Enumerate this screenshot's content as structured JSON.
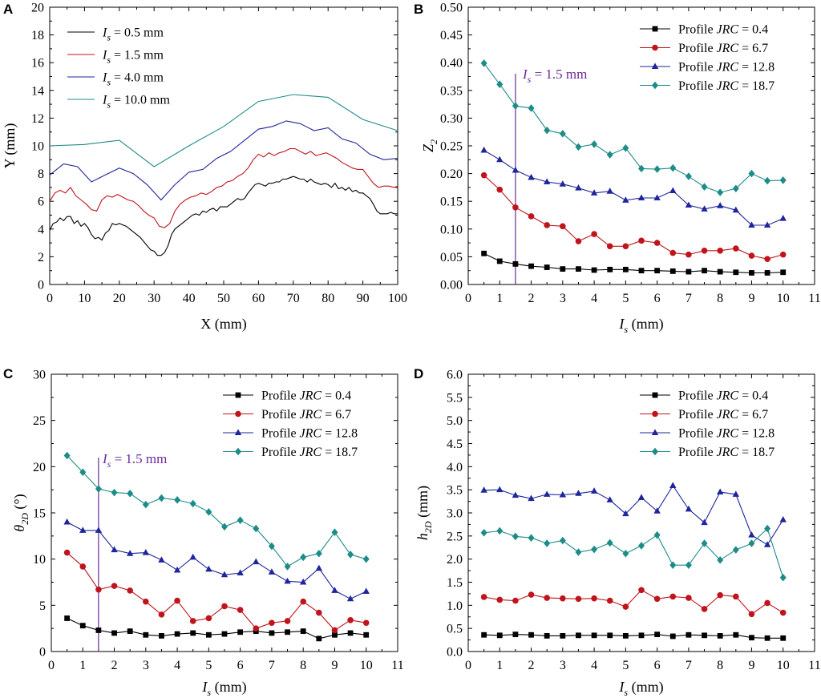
{
  "colors": {
    "black": "#000000",
    "red": "#c0141c",
    "blue": "#1f259b",
    "teal": "#1d8c88",
    "purple": "#6a2a9a"
  },
  "chart_data": [
    {
      "panel": "A",
      "type": "line",
      "xlabel": "X (mm)",
      "ylabel": "Y (mm)",
      "xlim": [
        0,
        100
      ],
      "ylim": [
        0,
        20
      ],
      "xticks": [
        "0",
        "10",
        "20",
        "30",
        "40",
        "50",
        "60",
        "70",
        "80",
        "90",
        "100"
      ],
      "yticks": [
        "0",
        "2",
        "4",
        "6",
        "8",
        "10",
        "12",
        "14",
        "16",
        "18",
        "20"
      ],
      "legend": [
        {
          "prefix": "I",
          "sub": "s",
          "rest": " = 0.5 mm"
        },
        {
          "prefix": "I",
          "sub": "s",
          "rest": " = 1.5 mm"
        },
        {
          "prefix": "I",
          "sub": "s",
          "rest": " = 4.0 mm"
        },
        {
          "prefix": "I",
          "sub": "s",
          "rest": " = 10.0 mm"
        }
      ],
      "series": [
        {
          "name": "Is = 0.5 mm",
          "color": "black",
          "x": [
            0,
            1,
            2,
            3,
            4,
            5,
            6,
            7,
            8,
            9,
            10,
            11,
            12,
            13,
            14,
            15,
            16,
            17,
            18,
            19,
            20,
            21,
            22,
            23,
            24,
            25,
            26,
            27,
            28,
            29,
            30,
            31,
            32,
            33,
            34,
            35,
            36,
            37,
            38,
            39,
            40,
            41,
            42,
            43,
            44,
            45,
            46,
            47,
            48,
            49,
            50,
            51,
            52,
            53,
            54,
            55,
            56,
            57,
            58,
            59,
            60,
            61,
            62,
            63,
            64,
            65,
            66,
            67,
            68,
            69,
            70,
            71,
            72,
            73,
            74,
            75,
            76,
            77,
            78,
            79,
            80,
            81,
            82,
            83,
            84,
            85,
            86,
            87,
            88,
            89,
            90,
            91,
            92,
            93,
            94,
            95,
            96,
            97,
            98,
            99,
            100
          ],
          "y": [
            3.9,
            4.4,
            4.5,
            4.8,
            4.6,
            4.9,
            4.9,
            4.4,
            4.6,
            4.2,
            4.4,
            4.1,
            3.6,
            3.3,
            3.4,
            3.2,
            3.7,
            3.9,
            4.4,
            4.3,
            4.4,
            4.3,
            4.2,
            4.0,
            3.8,
            3.6,
            3.4,
            3.1,
            2.8,
            2.5,
            2.4,
            2.1,
            2.1,
            2.3,
            2.8,
            3.6,
            4.0,
            4.2,
            4.4,
            4.6,
            4.8,
            5.0,
            5.1,
            5.0,
            5.3,
            5.2,
            5.4,
            5.5,
            5.3,
            5.6,
            5.6,
            5.6,
            5.8,
            6.0,
            6.2,
            6.1,
            6.2,
            6.6,
            6.9,
            7.2,
            7.3,
            7.2,
            7.1,
            7.3,
            7.3,
            7.4,
            7.4,
            7.6,
            7.6,
            7.7,
            7.8,
            7.7,
            7.6,
            7.6,
            7.4,
            7.6,
            7.4,
            7.3,
            7.2,
            7.3,
            7.2,
            7.0,
            7.3,
            6.9,
            7.0,
            6.8,
            7.0,
            6.7,
            6.8,
            6.6,
            6.6,
            6.4,
            6.2,
            5.8,
            5.3,
            5.1,
            5.1,
            5.1,
            5.2,
            5.1,
            5.1
          ]
        },
        {
          "name": "Is = 1.5 mm",
          "color": "red",
          "x": [
            0,
            1.5,
            3,
            4.5,
            6,
            7.5,
            9,
            10.5,
            12,
            13.5,
            15,
            16.5,
            18,
            19.5,
            21,
            22.5,
            24,
            25.5,
            27,
            28.5,
            30,
            31.5,
            33,
            34.5,
            36,
            37.5,
            39,
            40.5,
            42,
            43.5,
            45,
            46.5,
            48,
            49.5,
            51,
            52.5,
            54,
            55.5,
            57,
            58.5,
            60,
            61.5,
            63,
            64.5,
            66,
            67.5,
            69,
            70.5,
            72,
            73.5,
            75,
            76.5,
            78,
            79.5,
            81,
            82.5,
            84,
            85.5,
            87,
            88.5,
            90,
            91.5,
            93,
            94.5,
            96,
            97.5,
            99,
            100
          ],
          "y": [
            6.0,
            6.6,
            6.8,
            6.6,
            7.0,
            6.4,
            6.1,
            5.8,
            5.4,
            5.3,
            6.1,
            6.4,
            6.3,
            6.5,
            6.3,
            6.1,
            6.0,
            5.7,
            5.3,
            5.0,
            4.8,
            4.2,
            4.1,
            4.4,
            5.3,
            5.8,
            6.1,
            6.3,
            6.4,
            6.6,
            6.5,
            6.7,
            7.0,
            7.1,
            7.4,
            7.5,
            7.8,
            8.0,
            8.4,
            9.0,
            9.4,
            9.2,
            9.5,
            9.3,
            9.5,
            9.6,
            9.8,
            9.8,
            9.6,
            9.4,
            9.6,
            9.3,
            9.4,
            9.5,
            9.3,
            9.1,
            8.8,
            8.6,
            8.4,
            8.3,
            8.3,
            7.8,
            7.3,
            7.0,
            7.1,
            7.1,
            7.0,
            7.1
          ]
        },
        {
          "name": "Is = 4.0 mm",
          "color": "blue",
          "x": [
            0,
            4,
            8,
            12,
            16,
            20,
            24,
            28,
            32,
            36,
            40,
            44,
            48,
            52,
            56,
            60,
            64,
            68,
            72,
            76,
            80,
            84,
            88,
            92,
            96,
            100
          ],
          "y": [
            7.9,
            8.7,
            8.5,
            7.4,
            7.9,
            8.4,
            8.0,
            7.2,
            6.1,
            7.2,
            8.1,
            8.3,
            9.1,
            9.6,
            10.4,
            11.2,
            11.4,
            11.8,
            11.6,
            11.1,
            11.3,
            10.5,
            10.2,
            9.4,
            9.0,
            9.1
          ]
        },
        {
          "name": "Is = 10.0 mm",
          "color": "teal",
          "x": [
            0,
            10,
            20,
            30,
            40,
            50,
            60,
            70,
            80,
            90,
            100
          ],
          "y": [
            10.0,
            10.1,
            10.4,
            8.5,
            10.0,
            11.4,
            13.2,
            13.7,
            13.5,
            11.9,
            11.1
          ]
        }
      ]
    },
    {
      "panel": "B",
      "type": "line",
      "xlabel": "I",
      "xlabel_sub": "s",
      "xlabel_rest": " (mm)",
      "ylabel": "Z",
      "ylabel_sub": "2",
      "xlim": [
        0,
        11
      ],
      "ylim": [
        0,
        0.5
      ],
      "xticks": [
        "0",
        "1",
        "2",
        "3",
        "4",
        "5",
        "6",
        "7",
        "8",
        "9",
        "10",
        "11"
      ],
      "yticks": [
        "0.00",
        "0.05",
        "0.10",
        "0.15",
        "0.20",
        "0.25",
        "0.30",
        "0.35",
        "0.40",
        "0.45",
        "0.50"
      ],
      "annotation": {
        "x": 1.5,
        "prefix": "I",
        "sub": "s",
        "rest": " = 1.5 mm"
      },
      "legend": [
        {
          "pre": "Profile ",
          "it": "JRC",
          "post": " = 0.4"
        },
        {
          "pre": "Profile ",
          "it": "JRC",
          "post": " = 6.7"
        },
        {
          "pre": "Profile ",
          "it": "JRC",
          "post": " = 12.8"
        },
        {
          "pre": "Profile ",
          "it": "JRC",
          "post": " = 18.7"
        }
      ],
      "x": [
        0.5,
        1,
        1.5,
        2,
        2.5,
        3,
        3.5,
        4,
        4.5,
        5,
        5.5,
        6,
        6.5,
        7,
        7.5,
        8,
        8.5,
        9,
        9.5,
        10
      ],
      "series": [
        {
          "name": "Profile JRC = 0.4",
          "color": "black",
          "marker": "square",
          "values": [
            0.056,
            0.042,
            0.037,
            0.033,
            0.031,
            0.028,
            0.028,
            0.026,
            0.027,
            0.027,
            0.025,
            0.025,
            0.024,
            0.023,
            0.025,
            0.023,
            0.022,
            0.021,
            0.021,
            0.022
          ]
        },
        {
          "name": "Profile JRC = 6.7",
          "color": "red",
          "marker": "circle",
          "values": [
            0.197,
            0.171,
            0.139,
            0.123,
            0.107,
            0.105,
            0.078,
            0.091,
            0.069,
            0.069,
            0.079,
            0.075,
            0.057,
            0.054,
            0.061,
            0.061,
            0.065,
            0.052,
            0.046,
            0.054
          ]
        },
        {
          "name": "Profile JRC = 12.8",
          "color": "blue",
          "marker": "triangle",
          "values": [
            0.242,
            0.225,
            0.206,
            0.193,
            0.185,
            0.181,
            0.174,
            0.165,
            0.168,
            0.152,
            0.156,
            0.156,
            0.169,
            0.143,
            0.136,
            0.142,
            0.134,
            0.107,
            0.107,
            0.119
          ]
        },
        {
          "name": "Profile JRC = 18.7",
          "color": "teal",
          "marker": "diamond",
          "values": [
            0.399,
            0.361,
            0.322,
            0.318,
            0.278,
            0.272,
            0.248,
            0.253,
            0.234,
            0.246,
            0.209,
            0.208,
            0.21,
            0.195,
            0.176,
            0.166,
            0.173,
            0.2,
            0.187,
            0.188
          ]
        }
      ]
    },
    {
      "panel": "C",
      "type": "line",
      "xlabel": "I",
      "xlabel_sub": "s",
      "xlabel_rest": " (mm)",
      "ylabel": "θ",
      "ylabel_sub": "2D",
      "ylabel_rest": " (°)",
      "xlim": [
        0,
        11
      ],
      "ylim": [
        0,
        30
      ],
      "xticks": [
        "0",
        "1",
        "2",
        "3",
        "4",
        "5",
        "6",
        "7",
        "8",
        "9",
        "10",
        "11"
      ],
      "yticks": [
        "0",
        "5",
        "10",
        "15",
        "20",
        "25",
        "30"
      ],
      "annotation": {
        "x": 1.5,
        "prefix": "I",
        "sub": "s",
        "rest": " = 1.5 mm"
      },
      "legend": [
        {
          "pre": "Profile ",
          "it": "JRC",
          "post": " = 0.4"
        },
        {
          "pre": "Profile ",
          "it": "JRC",
          "post": " = 6.7"
        },
        {
          "pre": "Profile ",
          "it": "JRC",
          "post": " = 12.8"
        },
        {
          "pre": "Profile ",
          "it": "JRC",
          "post": " = 18.7"
        }
      ],
      "x": [
        0.5,
        1,
        1.5,
        2,
        2.5,
        3,
        3.5,
        4,
        4.5,
        5,
        5.5,
        6,
        6.5,
        7,
        7.5,
        8,
        8.5,
        9,
        9.5,
        10
      ],
      "series": [
        {
          "name": "Profile JRC = 0.4",
          "color": "black",
          "marker": "square",
          "values": [
            3.6,
            2.8,
            2.3,
            2.0,
            2.2,
            1.8,
            1.7,
            1.9,
            2.0,
            1.8,
            1.9,
            2.1,
            2.2,
            2.0,
            2.1,
            2.2,
            1.4,
            1.8,
            2.0,
            1.8
          ]
        },
        {
          "name": "Profile JRC = 6.7",
          "color": "red",
          "marker": "circle",
          "values": [
            10.7,
            9.2,
            6.7,
            7.1,
            6.6,
            5.4,
            4.0,
            5.5,
            3.3,
            3.6,
            4.9,
            4.5,
            2.5,
            3.1,
            3.3,
            5.4,
            4.2,
            2.3,
            3.4,
            3.1
          ]
        },
        {
          "name": "Profile JRC = 12.8",
          "color": "blue",
          "marker": "triangle",
          "values": [
            14.0,
            13.1,
            13.1,
            11.0,
            10.6,
            10.7,
            9.9,
            8.8,
            10.2,
            8.9,
            8.3,
            8.5,
            9.7,
            8.6,
            7.6,
            7.5,
            9.0,
            6.6,
            5.7,
            6.5
          ]
        },
        {
          "name": "Profile JRC = 18.7",
          "color": "teal",
          "marker": "diamond",
          "values": [
            21.2,
            19.4,
            17.6,
            17.2,
            17.1,
            15.9,
            16.6,
            16.4,
            16.0,
            15.1,
            13.5,
            14.2,
            13.3,
            11.4,
            9.2,
            10.2,
            10.6,
            12.9,
            10.5,
            10.0
          ]
        }
      ]
    },
    {
      "panel": "D",
      "type": "line",
      "xlabel": "I",
      "xlabel_sub": "s",
      "xlabel_rest": " (mm)",
      "ylabel": "h",
      "ylabel_sub": "2D",
      "ylabel_rest": " (mm)",
      "xlim": [
        0,
        11
      ],
      "ylim": [
        0,
        6
      ],
      "xticks": [
        "0",
        "1",
        "2",
        "3",
        "4",
        "5",
        "6",
        "7",
        "8",
        "9",
        "10",
        "11"
      ],
      "yticks": [
        "0.0",
        "0.5",
        "1.0",
        "1.5",
        "2.0",
        "2.5",
        "3.0",
        "3.5",
        "4.0",
        "4.5",
        "5.0",
        "5.5",
        "6.0"
      ],
      "legend": [
        {
          "pre": "Profile ",
          "it": "JRC",
          "post": " = 0.4"
        },
        {
          "pre": "Profile ",
          "it": "JRC",
          "post": " = 6.7"
        },
        {
          "pre": "Profile ",
          "it": "JRC",
          "post": " = 12.8"
        },
        {
          "pre": "Profile ",
          "it": "JRC",
          "post": " = 18.7"
        }
      ],
      "x": [
        0.5,
        1,
        1.5,
        2,
        2.5,
        3,
        3.5,
        4,
        4.5,
        5,
        5.5,
        6,
        6.5,
        7,
        7.5,
        8,
        8.5,
        9,
        9.5,
        10
      ],
      "series": [
        {
          "name": "Profile JRC = 0.4",
          "color": "black",
          "marker": "square",
          "values": [
            0.36,
            0.35,
            0.37,
            0.36,
            0.34,
            0.34,
            0.35,
            0.35,
            0.35,
            0.34,
            0.35,
            0.37,
            0.33,
            0.36,
            0.35,
            0.34,
            0.36,
            0.3,
            0.29,
            0.29
          ]
        },
        {
          "name": "Profile JRC = 6.7",
          "color": "red",
          "marker": "circle",
          "values": [
            1.18,
            1.12,
            1.1,
            1.23,
            1.16,
            1.15,
            1.14,
            1.15,
            1.1,
            0.97,
            1.33,
            1.14,
            1.19,
            1.16,
            0.92,
            1.22,
            1.19,
            0.81,
            1.05,
            0.84
          ]
        },
        {
          "name": "Profile JRC = 12.8",
          "color": "blue",
          "marker": "triangle",
          "values": [
            3.49,
            3.5,
            3.38,
            3.31,
            3.4,
            3.39,
            3.42,
            3.47,
            3.28,
            2.98,
            3.33,
            3.04,
            3.59,
            3.08,
            2.79,
            3.45,
            3.4,
            2.52,
            2.31,
            2.85
          ]
        },
        {
          "name": "Profile JRC = 18.7",
          "color": "teal",
          "marker": "diamond",
          "values": [
            2.57,
            2.61,
            2.49,
            2.46,
            2.34,
            2.4,
            2.15,
            2.21,
            2.35,
            2.12,
            2.29,
            2.52,
            1.87,
            1.87,
            2.34,
            1.98,
            2.2,
            2.34,
            2.66,
            1.6
          ]
        }
      ]
    }
  ]
}
